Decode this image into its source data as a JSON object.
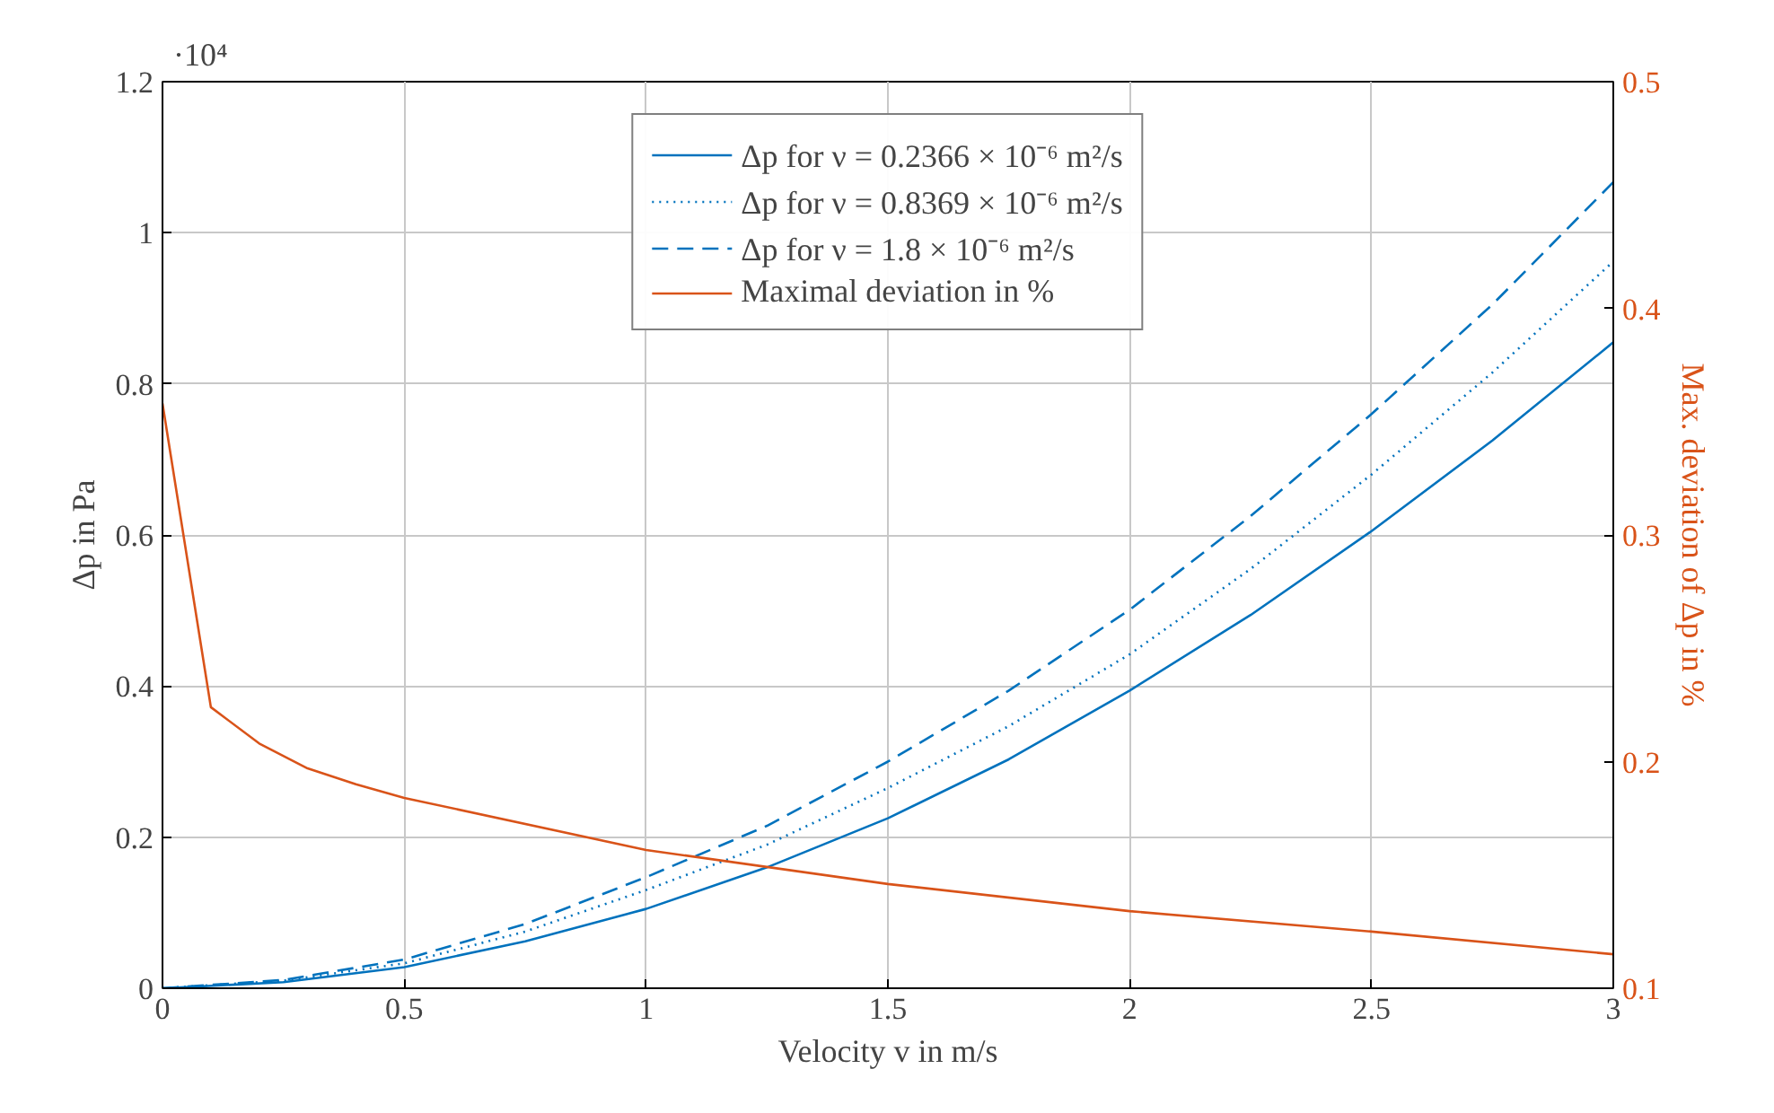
{
  "chart_data": {
    "type": "line",
    "xlabel": "Velocity v in m/s",
    "ylabel": "Δp in Pa",
    "y2label": "Max. deviation of Δp in %",
    "annotations": [
      "·10⁴"
    ],
    "x": [
      0,
      0.25,
      0.5,
      0.75,
      1,
      1.25,
      1.5,
      1.75,
      2,
      2.25,
      2.5,
      2.75,
      3
    ],
    "series": [
      {
        "name": "Δp for ν = 0.2366 × 10⁻⁶ m²/s",
        "color": "#0072bd",
        "line_style": "solid",
        "values": [
          0,
          0.008,
          0.028,
          0.062,
          0.105,
          0.16,
          0.225,
          0.303,
          0.394,
          0.494,
          0.605,
          0.725,
          0.855
        ]
      },
      {
        "name": "Δp for ν = 0.8369 × 10⁻⁶ m²/s",
        "color": "#0072bd",
        "line_style": "dotted",
        "values": [
          0,
          0.01,
          0.033,
          0.075,
          0.13,
          0.19,
          0.265,
          0.347,
          0.442,
          0.555,
          0.68,
          0.815,
          0.962
        ]
      },
      {
        "name": "Δp for ν = 1.8 × 10⁻⁶ m²/s",
        "color": "#0072bd",
        "line_style": "dashed",
        "values": [
          0,
          0.011,
          0.038,
          0.085,
          0.147,
          0.215,
          0.3,
          0.394,
          0.501,
          0.625,
          0.76,
          0.905,
          1.067
        ]
      },
      {
        "name": "Maximal deviation in %",
        "color": "#d95319",
        "line_style": "solid",
        "axis": "y2",
        "x": [
          0,
          0.1,
          0.2,
          0.3,
          0.4,
          0.5,
          1,
          1.5,
          2,
          2.5,
          3
        ],
        "values": [
          0.358,
          0.224,
          0.208,
          0.197,
          0.19,
          0.184,
          0.161,
          0.146,
          0.134,
          0.125,
          0.115
        ]
      }
    ],
    "xlim": [
      0,
      3
    ],
    "xticks": [
      0,
      0.5,
      1,
      1.5,
      2,
      2.5,
      3
    ],
    "ylim": [
      0,
      1.2
    ],
    "yticks": [
      0,
      0.2,
      0.4,
      0.6,
      0.8,
      1,
      1.2
    ],
    "y2lim": [
      0.1,
      0.5
    ],
    "y2ticks": [
      0.1,
      0.2,
      0.3,
      0.4,
      0.5
    ],
    "grid": true,
    "legend": "top"
  }
}
